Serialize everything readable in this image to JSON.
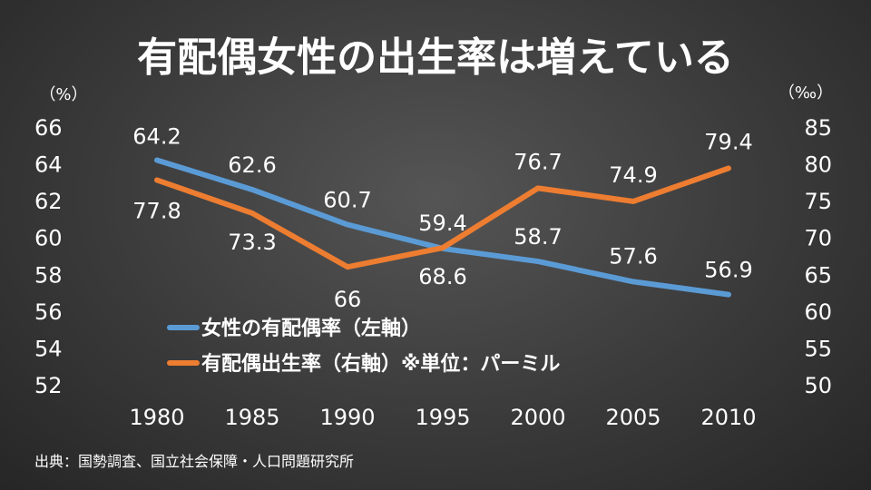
{
  "chart_data": {
    "type": "line",
    "title": "有配偶女性の出生率は増えている",
    "categories": [
      "1980",
      "1985",
      "1990",
      "1995",
      "2000",
      "2005",
      "2010"
    ],
    "y_left": {
      "unit": "（%）",
      "ylim": [
        52,
        66
      ],
      "ticks": [
        "66",
        "64",
        "62",
        "60",
        "58",
        "56",
        "54",
        "52"
      ]
    },
    "y_right": {
      "unit": "（‰）",
      "ylim": [
        50,
        85
      ],
      "ticks": [
        "85",
        "80",
        "75",
        "70",
        "65",
        "60",
        "55",
        "50"
      ]
    },
    "series": [
      {
        "name": "女性の有配偶率（左軸）",
        "axis": "left",
        "color": "#5b9bd5",
        "values": [
          64.2,
          62.6,
          60.7,
          59.4,
          58.7,
          57.6,
          56.9
        ],
        "labels": [
          "64.2",
          "62.6",
          "60.7",
          "59.4",
          "58.7",
          "57.6",
          "56.9"
        ]
      },
      {
        "name": "有配偶出生率（右軸）※単位：パーミル",
        "axis": "right",
        "color": "#ed7d31",
        "values": [
          77.8,
          73.3,
          66,
          68.6,
          76.7,
          74.9,
          79.4
        ],
        "labels": [
          "77.8",
          "73.3",
          "66",
          "68.6",
          "76.7",
          "74.9",
          "79.4"
        ]
      }
    ],
    "grid": false,
    "legend_position": "lower-left inside plot"
  },
  "source": "出典：国勢調査、国立社会保障・人口問題研究所"
}
